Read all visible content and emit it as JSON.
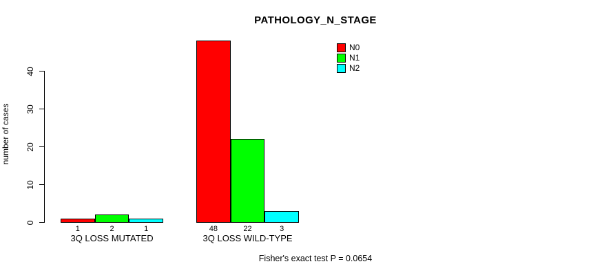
{
  "title": "PATHOLOGY_N_STAGE",
  "footnote": "Fisher's exact test P = 0.0654",
  "legend": {
    "items": [
      {
        "label": "N0",
        "color": "#ff0000"
      },
      {
        "label": "N1",
        "color": "#00ff00"
      },
      {
        "label": "N2",
        "color": "#00ffff"
      }
    ]
  },
  "chart_data": {
    "type": "bar",
    "grouped": true,
    "title": "PATHOLOGY_N_STAGE",
    "xlabel": "",
    "ylabel": "number of cases",
    "categories": [
      "3Q LOSS MUTATED",
      "3Q LOSS WILD-TYPE"
    ],
    "series": [
      {
        "name": "N0",
        "color": "#ff0000",
        "values": [
          1,
          48
        ]
      },
      {
        "name": "N1",
        "color": "#00ff00",
        "values": [
          2,
          22
        ]
      },
      {
        "name": "N2",
        "color": "#00ffff",
        "values": [
          1,
          3
        ]
      }
    ],
    "bar_value_labels": [
      [
        1,
        2,
        1
      ],
      [
        48,
        22,
        3
      ]
    ],
    "ylim": [
      0,
      40
    ],
    "yticks": [
      0,
      10,
      20,
      30,
      40
    ],
    "grid": false,
    "legend_position": "top-right-inside",
    "annotation": "Fisher's exact test P = 0.0654"
  }
}
